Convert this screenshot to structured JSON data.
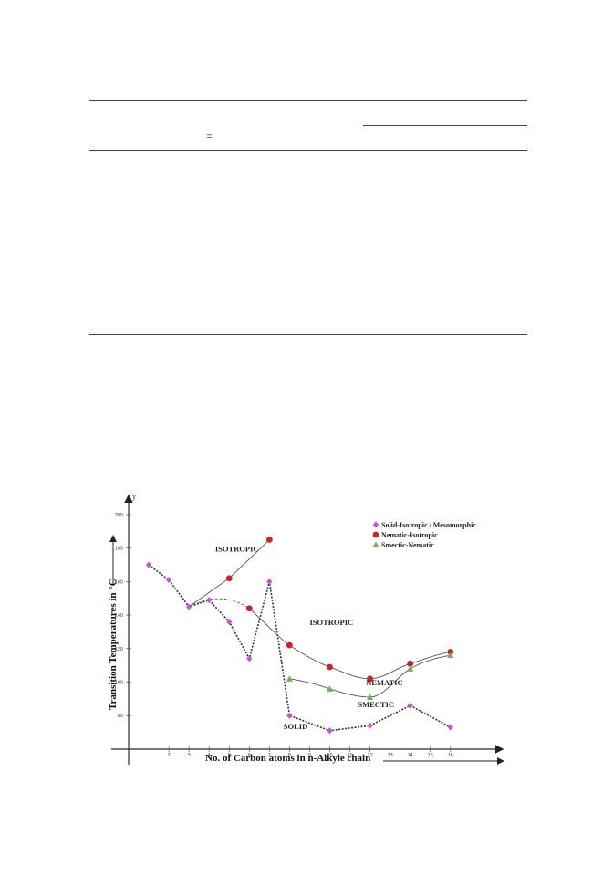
{
  "document": {
    "eq_symbol": "="
  },
  "chart_data": {
    "type": "line",
    "title": "",
    "xlabel": "No. of Carbon atoms in n-Alkyle chain",
    "ylabel": "Transition Temperatures in °C",
    "x_axis_letter": "",
    "y_axis_letter": "y",
    "xlim": [
      0,
      18
    ],
    "ylim": [
      60,
      200
    ],
    "x_ticks": [
      "2",
      "3",
      "4",
      "5",
      "6",
      "7",
      "8",
      "9",
      "10",
      "11",
      "12",
      "13",
      "14",
      "15",
      "16"
    ],
    "y_ticks": [
      "80",
      "100",
      "120",
      "140",
      "160",
      "180",
      "200"
    ],
    "legend_position": "top-right",
    "series": [
      {
        "name": "Solid-Isotropic / Mesomorphic",
        "marker": "diamond",
        "color": "#c05bc7",
        "x": [
          1,
          2,
          3,
          4,
          5,
          6,
          7,
          8,
          10,
          12,
          14,
          16
        ],
        "y": [
          170,
          161,
          145,
          149,
          136,
          114,
          160,
          80,
          71,
          74,
          86,
          73
        ]
      },
      {
        "name": "Nematic-Isotropic",
        "marker": "circle",
        "color": "#c8232b",
        "x": [
          5,
          6,
          7,
          8,
          10,
          12,
          14,
          16
        ],
        "y": [
          162,
          144,
          185,
          122,
          109,
          102,
          111,
          118
        ]
      },
      {
        "name": "Smectic-Nematic",
        "marker": "triangle",
        "color": "#6cb45a",
        "x": [
          8,
          10,
          12,
          14,
          16
        ],
        "y": [
          102,
          96,
          91,
          108,
          116
        ]
      }
    ],
    "annotations": [
      {
        "text": "ISOTROPIC",
        "x": 4.3,
        "y": 178
      },
      {
        "text": "ISOTROPIC",
        "x": 9.0,
        "y": 134
      },
      {
        "text": "NEMATIC",
        "x": 11.8,
        "y": 98
      },
      {
        "text": "SMECTIC",
        "x": 11.4,
        "y": 85
      },
      {
        "text": "SOLID",
        "x": 7.7,
        "y": 72
      }
    ]
  }
}
